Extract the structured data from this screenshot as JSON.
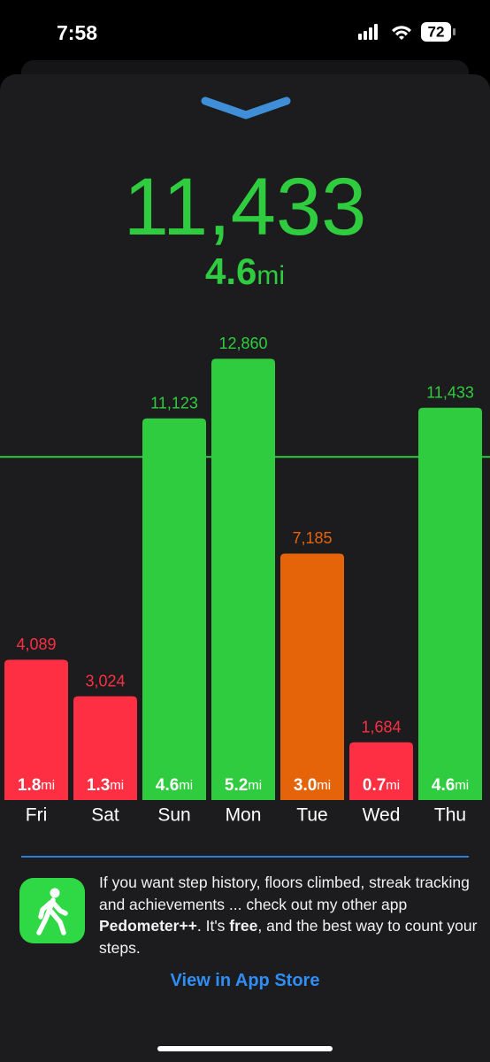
{
  "status_bar": {
    "time": "7:58",
    "battery": "72"
  },
  "header": {
    "steps": "11,433",
    "distance": "4.6",
    "unit": "mi"
  },
  "chart_data": {
    "type": "bar",
    "categories": [
      "Fri",
      "Sat",
      "Sun",
      "Mon",
      "Tue",
      "Wed",
      "Thu"
    ],
    "values": [
      4089,
      3024,
      11123,
      12860,
      7185,
      1684,
      11433
    ],
    "value_labels": [
      "4,089",
      "3,024",
      "11,123",
      "12,860",
      "7,185",
      "1,684",
      "11,433"
    ],
    "distance_labels": [
      "1.8",
      "1.3",
      "4.6",
      "5.2",
      "3.0",
      "0.7",
      "4.6"
    ],
    "unit": "mi",
    "colors": [
      "#fe2f42",
      "#fe2f42",
      "#2fcc3f",
      "#2fcc3f",
      "#e5640a",
      "#fe2f42",
      "#2fcc3f"
    ],
    "goal": 10000,
    "goal_color": "#2fcc3f",
    "ylim": [
      0,
      13000
    ]
  },
  "promo": {
    "parts": [
      "If you want step history, floors climbed, streak tracking and achievements ... check out my other app ",
      "Pedometer++",
      ".  It's ",
      "free",
      ", and the best way to count your steps."
    ],
    "link": "View in App Store"
  }
}
